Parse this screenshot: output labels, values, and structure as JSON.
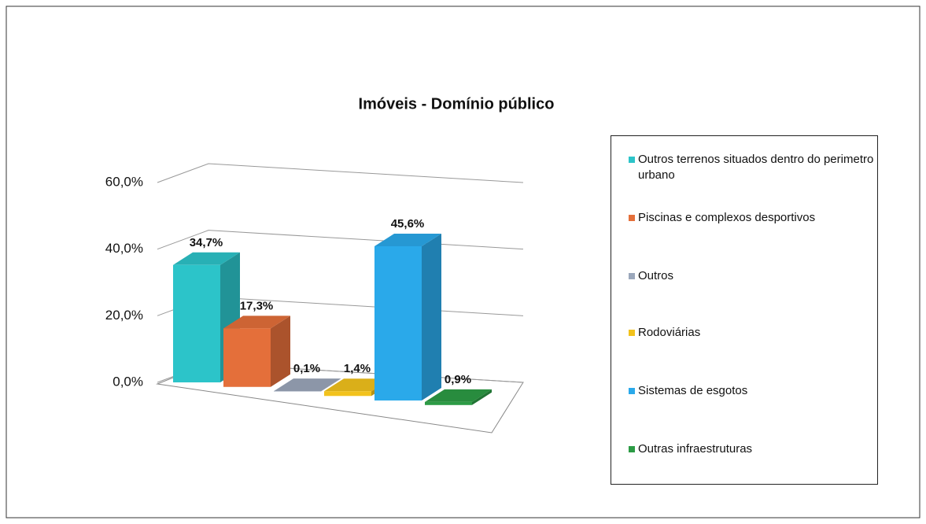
{
  "chart_data": {
    "type": "bar3d",
    "title": "Imóveis -  Domínio público",
    "categories": [
      "Outros terrenos situados dentro do perimetro urbano",
      "Piscinas e complexos desportivos",
      "Outros",
      "Rodoviárias",
      "Sistemas de esgotos",
      "Outras infraestruturas"
    ],
    "values": [
      34.7,
      17.3,
      0.1,
      1.4,
      45.6,
      0.9
    ],
    "value_labels": [
      "34,7%",
      "17,3%",
      "0,1%",
      "1,4%",
      "45,6%",
      "0,9%"
    ],
    "colors": [
      "#2cc4c9",
      "#e46f3a",
      "#9ba7bb",
      "#f2c21c",
      "#2aa9ea",
      "#2c9b45"
    ],
    "ylim": [
      0,
      60
    ],
    "yticks": [
      {
        "value": 0,
        "label": "0,0%"
      },
      {
        "value": 20,
        "label": "20,0%"
      },
      {
        "value": 40,
        "label": "40,0%"
      },
      {
        "value": 60,
        "label": "60,0%"
      }
    ],
    "grid": true,
    "legend": "right"
  }
}
